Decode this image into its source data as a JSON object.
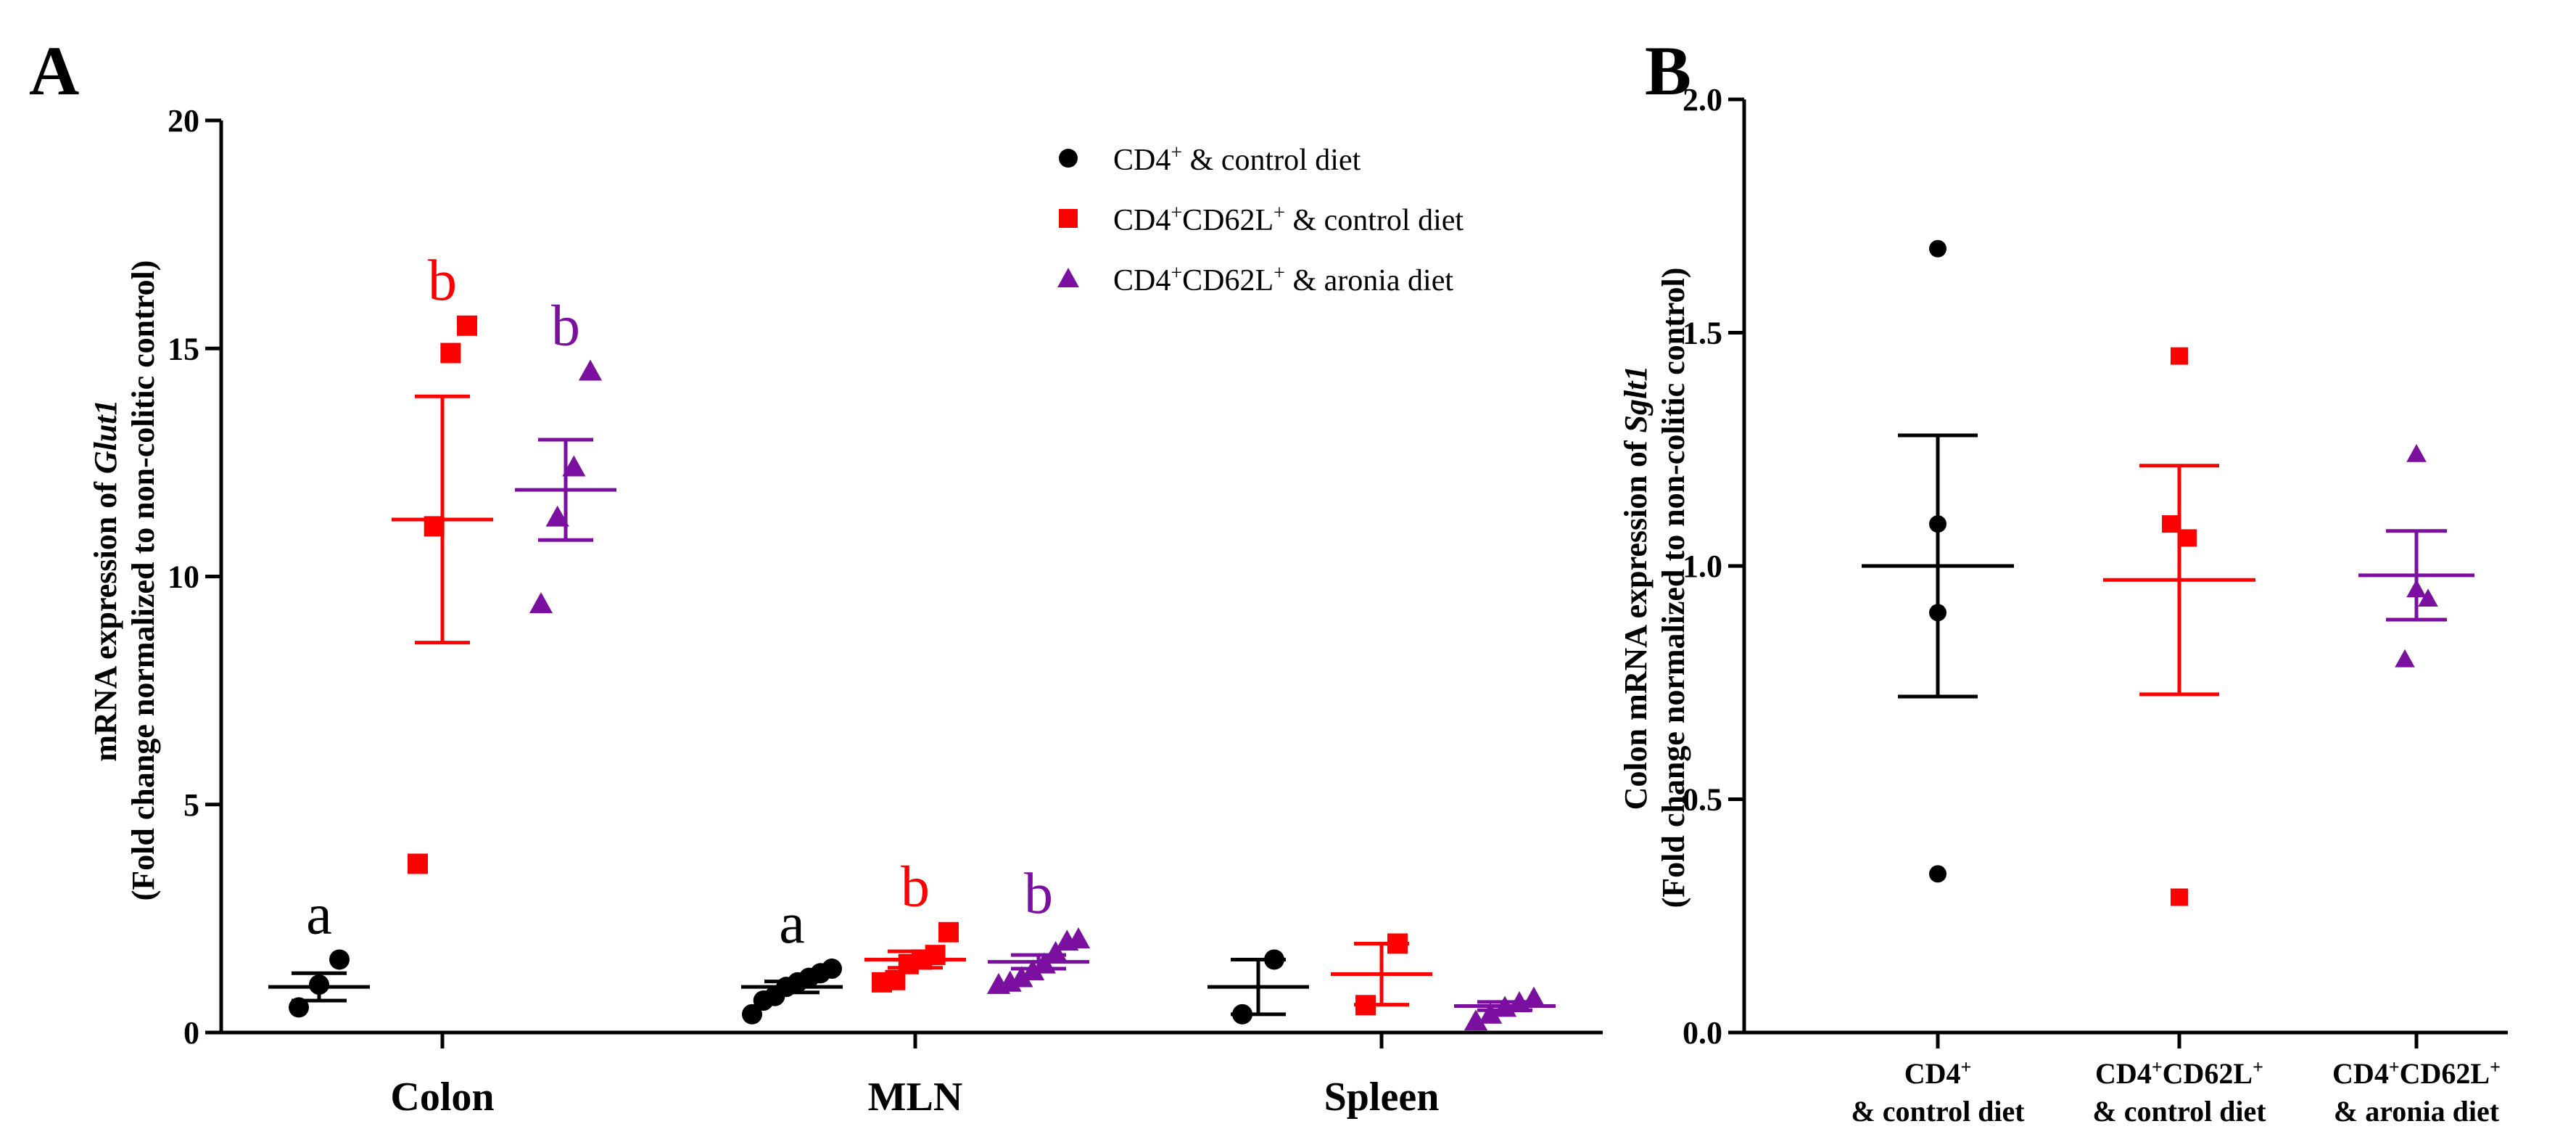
{
  "colors": {
    "CD4+ & control diet": "#000000",
    "CD4+CD62L+ & control diet": "#ff0000",
    "CD4+CD62L+ & aronia diet": "#7b0fa0"
  },
  "legend": [
    {
      "base": "CD4",
      "sup": "+",
      "rest": " & control diet",
      "marker": "circle",
      "color": "#000000"
    },
    {
      "base": "CD4",
      "sup": "+",
      "base2": "CD62L",
      "sup2": "+",
      "rest": " & control diet",
      "marker": "square",
      "color": "#ff0000"
    },
    {
      "base": "CD4",
      "sup": "+",
      "base2": "CD62L",
      "sup2": "+",
      "rest": " & aronia diet",
      "marker": "triangle",
      "color": "#7b0fa0"
    }
  ],
  "chart_data": [
    {
      "panel": "A",
      "type": "scatter",
      "title": "",
      "ylabel_line1_prefix": "mRNA expression of ",
      "ylabel_line1_italic": "Glut1",
      "ylabel_line2": "(Fold change normalized to non-colitic control)",
      "xlabel": "",
      "ylim": [
        0,
        20
      ],
      "yticks": [
        0,
        5,
        10,
        15,
        20
      ],
      "categories": [
        "Colon",
        "MLN",
        "Spleen"
      ],
      "series": [
        {
          "name": "CD4+ & control diet",
          "marker": "circle",
          "color": "#000000",
          "groups": [
            {
              "category": "Colon",
              "points": [
                0.55,
                1.05,
                1.6
              ],
              "mean": 1.0,
              "sem": 0.3,
              "label": "a"
            },
            {
              "category": "MLN",
              "points": [
                0.4,
                0.7,
                0.8,
                1.0,
                1.1,
                1.2,
                1.3,
                1.4
              ],
              "mean": 1.0,
              "sem": 0.12,
              "label": "a"
            },
            {
              "category": "Spleen",
              "points": [
                0.4,
                1.6
              ],
              "mean": 1.0,
              "sem": 0.6,
              "label": ""
            }
          ]
        },
        {
          "name": "CD4+CD62L+ & control diet",
          "marker": "square",
          "color": "#ff0000",
          "groups": [
            {
              "category": "Colon",
              "points": [
                3.7,
                11.1,
                14.9,
                15.5
              ],
              "mean": 11.25,
              "sem": 2.7,
              "label": "b"
            },
            {
              "category": "MLN",
              "points": [
                1.1,
                1.15,
                1.5,
                1.6,
                1.7,
                2.2
              ],
              "mean": 1.6,
              "sem": 0.18,
              "label": "b"
            },
            {
              "category": "Spleen",
              "points": [
                0.6,
                1.95
              ],
              "mean": 1.28,
              "sem": 0.67,
              "label": ""
            }
          ]
        },
        {
          "name": "CD4+CD62L+ & aronia diet",
          "marker": "triangle",
          "color": "#7b0fa0",
          "groups": [
            {
              "category": "Colon",
              "points": [
                9.4,
                11.3,
                12.4,
                14.5
              ],
              "mean": 11.9,
              "sem": 1.1,
              "label": "b"
            },
            {
              "category": "MLN",
              "points": [
                1.05,
                1.1,
                1.2,
                1.35,
                1.5,
                1.75,
                2.0,
                2.05
              ],
              "mean": 1.55,
              "sem": 0.15,
              "label": "b"
            },
            {
              "category": "Spleen",
              "points": [
                0.25,
                0.4,
                0.55,
                0.65,
                0.75
              ],
              "mean": 0.58,
              "sem": 0.09,
              "label": ""
            }
          ]
        }
      ]
    },
    {
      "panel": "B",
      "type": "scatter",
      "title": "",
      "ylabel_line1_prefix": "Colon mRNA expression of ",
      "ylabel_line1_italic": "Sglt1",
      "ylabel_line2": "(Fold change normalized to non-colitic control)",
      "xlabel": "",
      "ylim": [
        0,
        2
      ],
      "yticks": [
        "0.0",
        "0.5",
        "1.0",
        "1.5",
        "2.0"
      ],
      "categories": [
        {
          "line1_base": "CD4",
          "line1_sup": "+",
          "line1_base2": "",
          "line1_sup2": "",
          "line2": "& control diet"
        },
        {
          "line1_base": "CD4",
          "line1_sup": "+",
          "line1_base2": "CD62L",
          "line1_sup2": "+",
          "line2": "& control diet"
        },
        {
          "line1_base": "CD4",
          "line1_sup": "+",
          "line1_base2": "CD62L",
          "line1_sup2": "+",
          "line2": "& aronia diet"
        }
      ],
      "series": [
        {
          "name": "CD4+ & control diet",
          "marker": "circle",
          "color": "#000000",
          "points": [
            0.34,
            0.9,
            1.09,
            1.68
          ],
          "mean": 1.0,
          "sem": 0.28
        },
        {
          "name": "CD4+CD62L+ & control diet",
          "marker": "square",
          "color": "#ff0000",
          "points": [
            0.29,
            1.06,
            1.09,
            1.45
          ],
          "mean": 0.97,
          "sem": 0.245
        },
        {
          "name": "CD4+CD62L+ & aronia diet",
          "marker": "triangle",
          "color": "#7b0fa0",
          "points": [
            0.8,
            0.93,
            0.95,
            1.24
          ],
          "mean": 0.98,
          "sem": 0.095
        }
      ]
    }
  ]
}
